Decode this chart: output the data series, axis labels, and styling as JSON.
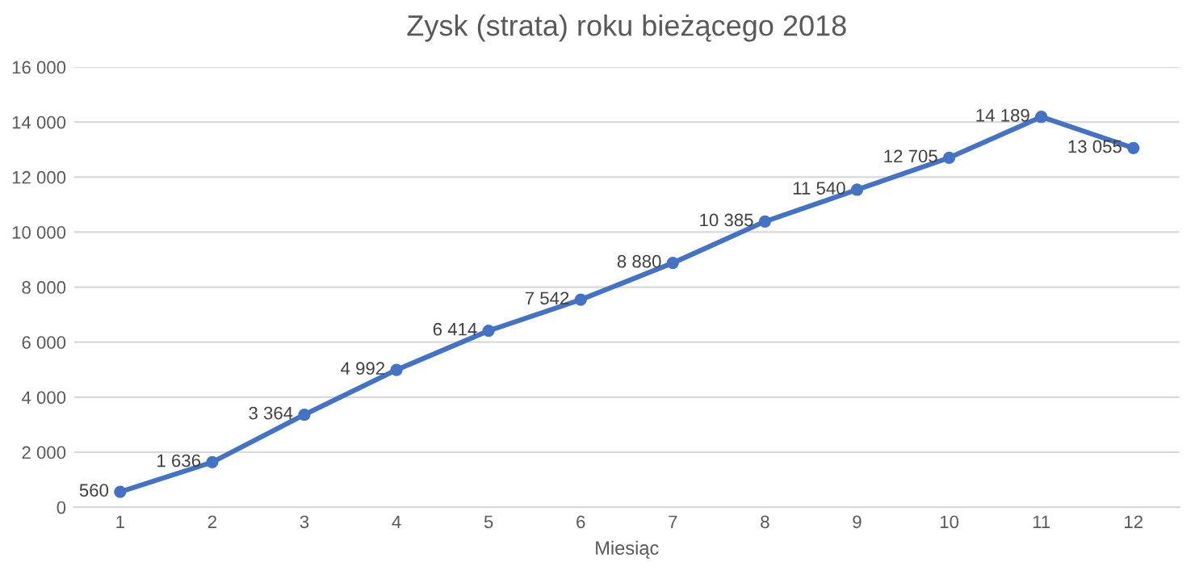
{
  "chart_data": {
    "type": "line",
    "title": "Zysk (strata) roku bieżącego 2018",
    "xlabel": "Miesiąc",
    "categories": [
      "1",
      "2",
      "3",
      "4",
      "5",
      "6",
      "7",
      "8",
      "9",
      "10",
      "11",
      "12"
    ],
    "series": [
      {
        "color": "#4472c4",
        "values": [
          560,
          1636,
          3364,
          4992,
          6414,
          7542,
          8880,
          10385,
          11540,
          12705,
          14189,
          13055
        ],
        "value_labels": [
          "560",
          "1 636",
          "3 364",
          "4 992",
          "6 414",
          "7 542",
          "8 880",
          "10 385",
          "11 540",
          "12 705",
          "14 189",
          "13 055"
        ]
      }
    ],
    "ylim": [
      0,
      16000
    ],
    "yticks": [
      {
        "value": 0,
        "label": "0"
      },
      {
        "value": 2000,
        "label": "2 000"
      },
      {
        "value": 4000,
        "label": "4 000"
      },
      {
        "value": 6000,
        "label": "6 000"
      },
      {
        "value": 8000,
        "label": "8 000"
      },
      {
        "value": 10000,
        "label": "10 000"
      },
      {
        "value": 12000,
        "label": "12 000"
      },
      {
        "value": 14000,
        "label": "14 000"
      },
      {
        "value": 16000,
        "label": "16 000"
      }
    ],
    "grid": "y",
    "marker": "circle",
    "line_style": "solid",
    "legend": false
  }
}
